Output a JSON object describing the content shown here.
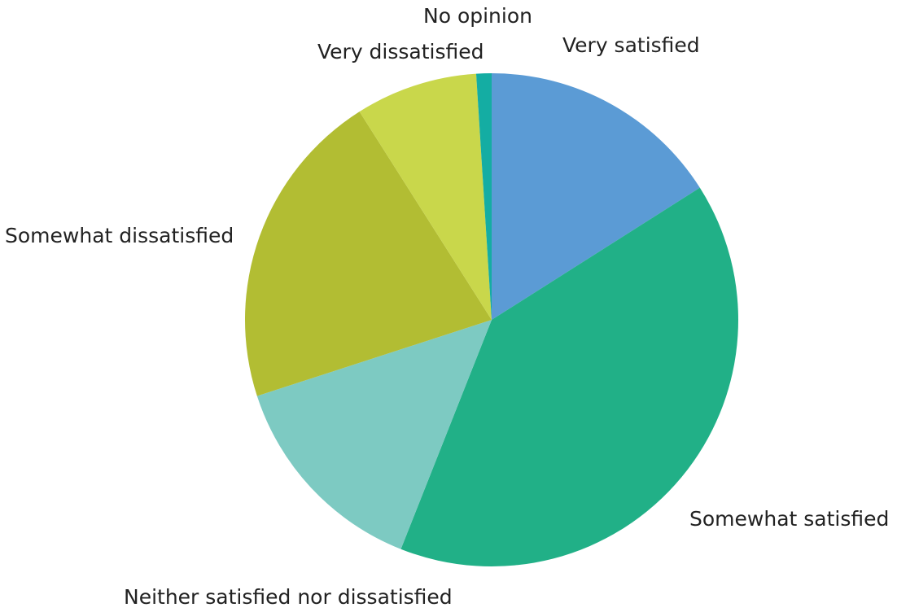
{
  "chart_data": {
    "type": "pie",
    "title": "",
    "start_angle_deg": 0,
    "direction": "clockwise",
    "slices": [
      {
        "label": "Very satisfied",
        "value": 16,
        "color": "#5b9bd5"
      },
      {
        "label": "Somewhat satisfied",
        "value": 40,
        "color": "#21b087"
      },
      {
        "label": "Neither satisfied nor dissatisfied",
        "value": 14,
        "color": "#7dcac2"
      },
      {
        "label": "Somewhat dissatisfied",
        "value": 21,
        "color": "#b2bd33"
      },
      {
        "label": "Very dissatisfied",
        "value": 8,
        "color": "#c9d74b"
      },
      {
        "label": "No opinion",
        "value": 1,
        "color": "#14ada3"
      }
    ]
  }
}
